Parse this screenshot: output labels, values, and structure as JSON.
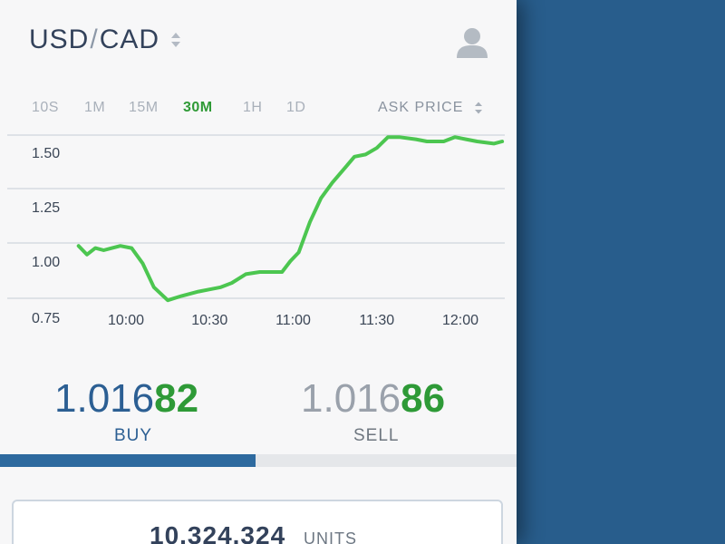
{
  "header": {
    "base": "USD",
    "separator": "/",
    "quote": "CAD"
  },
  "icons": {
    "pair_selector": "sort-arrows-icon",
    "profile": "user-icon",
    "price_type_selector": "sort-arrows-icon"
  },
  "ranges": {
    "items": [
      "10S",
      "1M",
      "15M",
      "30M",
      "1H",
      "1D"
    ],
    "selected": "30M"
  },
  "price_type": "ASK PRICE",
  "chart_data": {
    "type": "line",
    "x_ticks": [
      "10:00",
      "10:30",
      "11:00",
      "11:30",
      "12:00"
    ],
    "y_ticks": [
      "1.50",
      "1.25",
      "1.00",
      "0.75"
    ],
    "ylim": [
      0.75,
      1.5
    ],
    "grid": true,
    "color": "#4cc650",
    "series": [
      {
        "x": [
          "09:43",
          "09:46",
          "09:49",
          "09:52",
          "09:55",
          "09:58",
          "10:02",
          "10:06",
          "10:10",
          "10:15",
          "10:20",
          "10:26",
          "10:30",
          "10:34",
          "10:38",
          "10:43",
          "10:48",
          "10:56",
          "10:59",
          "11:02",
          "11:06",
          "11:10",
          "11:14",
          "11:18",
          "11:22",
          "11:26",
          "11:30",
          "11:34",
          "11:38",
          "11:44",
          "11:48",
          "11:54",
          "11:58",
          "12:02",
          "12:06",
          "12:12",
          "12:15"
        ],
        "y": [
          1.07,
          1.03,
          1.06,
          1.05,
          1.06,
          1.07,
          1.06,
          0.99,
          0.88,
          0.82,
          0.84,
          0.86,
          0.87,
          0.88,
          0.9,
          0.94,
          0.95,
          0.95,
          1.0,
          1.04,
          1.18,
          1.29,
          1.36,
          1.42,
          1.48,
          1.49,
          1.52,
          1.57,
          1.57,
          1.56,
          1.55,
          1.55,
          1.57,
          1.56,
          1.55,
          1.54,
          1.55
        ]
      }
    ]
  },
  "quote": {
    "buy": {
      "prefix": "1.016",
      "big": "82",
      "label": "BUY"
    },
    "sell": {
      "prefix": "1.016",
      "big": "86",
      "label": "SELL"
    },
    "selected_side": "BUY"
  },
  "amount": {
    "value": "10.324.324",
    "unit": "UNITS"
  }
}
